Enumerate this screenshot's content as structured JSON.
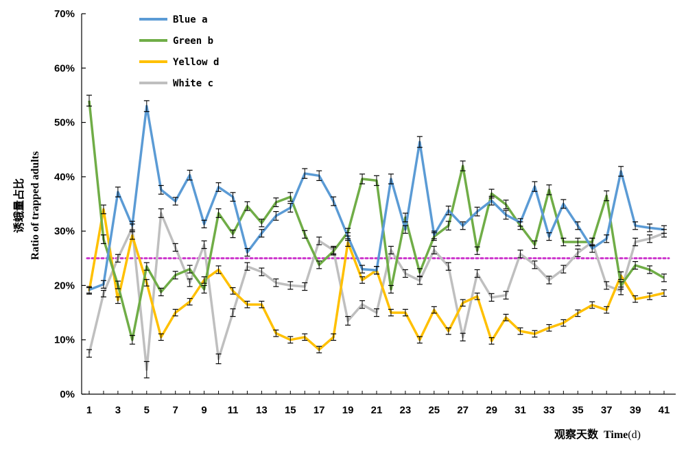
{
  "chart_data": {
    "type": "line",
    "title": "",
    "xlabel": "观察天数",
    "xlabel_bold": "Time",
    "xlabel_unit": "(d)",
    "ylabel_line1": "诱蛾量占比",
    "ylabel_line2": "Ratio of trapped adults",
    "xlim": [
      1,
      41
    ],
    "ylim": [
      0,
      70
    ],
    "x_ticks": [
      1,
      3,
      5,
      7,
      9,
      11,
      13,
      15,
      17,
      19,
      21,
      23,
      25,
      27,
      29,
      31,
      33,
      35,
      37,
      39,
      41
    ],
    "y_ticks": [
      0,
      10,
      20,
      30,
      40,
      50,
      60,
      70
    ],
    "y_tick_labels": [
      "0%",
      "10%",
      "20%",
      "30%",
      "40%",
      "50%",
      "60%",
      "70%"
    ],
    "legend_position": "top-left",
    "grid": false,
    "x": [
      1,
      2,
      3,
      4,
      5,
      6,
      7,
      8,
      9,
      10,
      11,
      12,
      13,
      14,
      15,
      16,
      17,
      18,
      19,
      20,
      21,
      22,
      23,
      24,
      25,
      26,
      27,
      28,
      29,
      30,
      31,
      32,
      33,
      34,
      35,
      36,
      37,
      38,
      39,
      40,
      41
    ],
    "series": [
      {
        "name": "Blue a",
        "color": "#5b9bd5",
        "values": [
          19.2,
          20.2,
          37.2,
          31.0,
          53.0,
          37.6,
          35.5,
          40.3,
          31.3,
          38.1,
          36.3,
          26.1,
          29.6,
          32.8,
          34.3,
          40.6,
          40.2,
          35.5,
          29.0,
          23.0,
          22.8,
          39.6,
          30.3,
          46.4,
          29.3,
          33.8,
          31.0,
          33.6,
          35.6,
          33.0,
          31.6,
          38.2,
          29.0,
          35.0,
          31.0,
          26.8,
          28.6,
          41.0,
          31.0,
          30.6,
          30.3
        ],
        "errors": [
          0.6,
          0.7,
          0.9,
          0.8,
          1.0,
          0.8,
          0.7,
          0.9,
          0.7,
          0.8,
          0.8,
          0.7,
          0.7,
          0.8,
          0.8,
          0.9,
          0.9,
          0.8,
          0.7,
          0.7,
          0.7,
          0.9,
          0.7,
          1.0,
          0.7,
          0.8,
          0.7,
          0.8,
          0.8,
          0.8,
          0.7,
          0.9,
          0.7,
          0.8,
          0.7,
          0.7,
          0.7,
          0.9,
          0.7,
          0.7,
          0.7
        ]
      },
      {
        "name": "Green b",
        "color": "#70ad47",
        "values": [
          54.0,
          28.5,
          20.1,
          10.0,
          23.5,
          18.8,
          21.9,
          23.0,
          19.3,
          33.3,
          29.5,
          34.6,
          31.5,
          35.3,
          36.3,
          29.4,
          23.8,
          26.3,
          29.8,
          39.6,
          39.3,
          19.3,
          32.5,
          22.4,
          29.0,
          31.0,
          42.0,
          26.4,
          36.9,
          34.9,
          31.0,
          27.5,
          37.6,
          28.0,
          28.0,
          28.0,
          36.5,
          20.0,
          23.7,
          22.9,
          21.4
        ],
        "errors": [
          1.0,
          0.8,
          0.7,
          0.8,
          0.7,
          0.7,
          0.7,
          0.7,
          0.7,
          0.8,
          0.7,
          0.8,
          0.7,
          0.8,
          0.8,
          0.7,
          0.7,
          0.7,
          0.7,
          0.9,
          0.9,
          0.7,
          0.8,
          0.7,
          0.7,
          0.8,
          0.9,
          0.7,
          0.8,
          0.8,
          0.7,
          0.7,
          0.9,
          0.7,
          0.7,
          0.7,
          0.9,
          0.7,
          0.7,
          0.7,
          0.7
        ]
      },
      {
        "name": "Yellow d",
        "color": "#ffc000",
        "values": [
          19.0,
          34.0,
          17.3,
          29.2,
          20.5,
          10.5,
          15.0,
          17.0,
          21.0,
          22.9,
          19.0,
          16.5,
          16.5,
          11.2,
          10.0,
          10.5,
          8.2,
          10.5,
          27.9,
          21.0,
          22.8,
          15.0,
          15.0,
          10.0,
          15.5,
          11.6,
          16.8,
          18.0,
          9.8,
          14.1,
          11.6,
          11.1,
          12.2,
          13.1,
          14.9,
          16.4,
          15.5,
          21.8,
          17.5,
          18.0,
          18.6
        ],
        "errors": [
          0.6,
          0.8,
          0.6,
          0.7,
          0.6,
          0.6,
          0.6,
          0.6,
          0.6,
          0.7,
          0.6,
          0.6,
          0.6,
          0.6,
          0.6,
          0.6,
          0.6,
          0.6,
          0.7,
          0.6,
          0.7,
          0.6,
          0.6,
          0.6,
          0.6,
          0.6,
          0.6,
          0.6,
          0.6,
          0.6,
          0.6,
          0.6,
          0.6,
          0.6,
          0.6,
          0.6,
          0.6,
          0.7,
          0.6,
          0.6,
          0.6
        ]
      },
      {
        "name": "White c",
        "color": "#bfbfbf",
        "values": [
          7.5,
          18.5,
          25.0,
          30.6,
          4.5,
          33.3,
          27.0,
          20.5,
          27.5,
          6.5,
          15.0,
          23.5,
          22.5,
          20.5,
          20.0,
          19.8,
          28.2,
          26.5,
          13.5,
          16.5,
          15.0,
          26.5,
          22.2,
          20.9,
          26.5,
          23.5,
          10.5,
          22.2,
          17.8,
          18.2,
          25.8,
          23.8,
          21.0,
          23.0,
          26.0,
          28.0,
          20.0,
          19.0,
          28.0,
          28.6,
          29.6
        ],
        "errors": [
          0.7,
          0.6,
          0.7,
          0.7,
          1.5,
          0.8,
          0.7,
          0.7,
          0.7,
          0.9,
          0.7,
          0.7,
          0.7,
          0.7,
          0.7,
          0.7,
          0.7,
          0.7,
          0.8,
          0.7,
          0.7,
          0.7,
          0.7,
          0.7,
          0.7,
          0.7,
          0.7,
          0.7,
          0.7,
          0.7,
          0.7,
          0.7,
          0.7,
          0.7,
          0.7,
          0.7,
          0.7,
          0.7,
          0.7,
          0.7,
          0.7
        ]
      }
    ],
    "reference_line": {
      "value": 25,
      "color": "#cc33cc",
      "style": "dotted"
    }
  }
}
